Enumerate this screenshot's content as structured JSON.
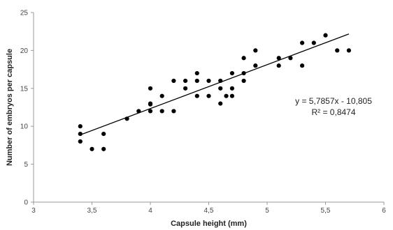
{
  "chart_data": {
    "type": "scatter",
    "title": "",
    "xlabel": "Capsule height (mm)",
    "ylabel": "Number of embryos per capsule",
    "xlim": [
      3,
      6
    ],
    "ylim": [
      0,
      25
    ],
    "x_ticks": [
      "3",
      "3,5",
      "4",
      "4,5",
      "5",
      "5,5",
      "6"
    ],
    "y_ticks": [
      "0",
      "5",
      "10",
      "15",
      "20",
      "25"
    ],
    "grid": false,
    "legend": "none",
    "series": [
      {
        "points": [
          [
            3.4,
            10
          ],
          [
            3.4,
            9
          ],
          [
            3.4,
            8
          ],
          [
            3.5,
            7
          ],
          [
            3.6,
            9
          ],
          [
            3.6,
            7
          ],
          [
            3.8,
            11
          ],
          [
            3.9,
            12
          ],
          [
            4.0,
            15
          ],
          [
            4.0,
            13
          ],
          [
            4.0,
            12.9
          ],
          [
            4.0,
            12
          ],
          [
            4.1,
            14
          ],
          [
            4.1,
            12
          ],
          [
            4.2,
            16
          ],
          [
            4.2,
            12
          ],
          [
            4.3,
            16
          ],
          [
            4.3,
            15
          ],
          [
            4.4,
            17
          ],
          [
            4.4,
            16
          ],
          [
            4.4,
            14
          ],
          [
            4.5,
            16
          ],
          [
            4.5,
            14
          ],
          [
            4.6,
            16
          ],
          [
            4.6,
            15
          ],
          [
            4.6,
            13
          ],
          [
            4.65,
            14
          ],
          [
            4.7,
            17
          ],
          [
            4.7,
            15
          ],
          [
            4.7,
            14
          ],
          [
            4.8,
            19
          ],
          [
            4.8,
            17
          ],
          [
            4.8,
            16
          ],
          [
            4.9,
            20
          ],
          [
            4.9,
            18
          ],
          [
            5.1,
            19
          ],
          [
            5.1,
            18
          ],
          [
            5.2,
            19
          ],
          [
            5.3,
            21
          ],
          [
            5.3,
            18
          ],
          [
            5.4,
            21
          ],
          [
            5.5,
            22
          ],
          [
            5.6,
            20
          ],
          [
            5.7,
            20
          ]
        ]
      }
    ],
    "trendline": {
      "slope": 5.7857,
      "intercept": -10.805,
      "x_range": [
        3.4,
        5.7
      ]
    },
    "annotations": {
      "equation": "y = 5,7857x - 10,805",
      "r_squared": "R² = 0,8474"
    },
    "colors": {
      "points": "#000000",
      "trendline": "#000000",
      "axis": "#999999",
      "text": "#222222"
    }
  }
}
